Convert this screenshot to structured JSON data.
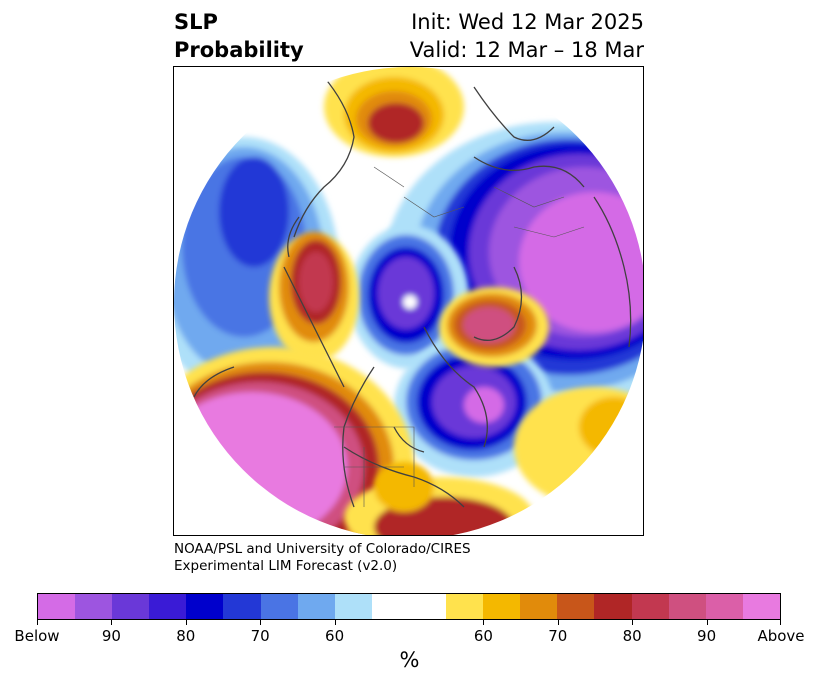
{
  "header": {
    "title_line1": "SLP",
    "title_line2": "Probability",
    "init_line": "Init: Wed 12 Mar 2025",
    "valid_line": "Valid: 12 Mar – 18 Mar"
  },
  "credit": {
    "line1": "NOAA/PSL and University of Colorado/CIRES",
    "line2": "Experimental LIM Forecast (v2.0)"
  },
  "colorbar": {
    "colors": [
      "#d46be6",
      "#9d55e0",
      "#6a38d8",
      "#3a1bd6",
      "#0000cc",
      "#2338d6",
      "#4a74e4",
      "#6fa9ef",
      "#aee0f9",
      "#ffffff",
      "#ffffff",
      "#ffe24d",
      "#f4b800",
      "#e18b0b",
      "#c8561a",
      "#b02626",
      "#c23850",
      "#cf5080",
      "#db5fa8",
      "#e87ae0"
    ],
    "tick_labels": [
      "Below",
      "90",
      "80",
      "70",
      "60",
      "60",
      "70",
      "80",
      "90",
      "Above"
    ],
    "unit_label": "%"
  },
  "map": {
    "anomaly_colors": {
      "above_strong": "#e87ae0",
      "above_high": "#b02626",
      "above_mid": "#e18b0b",
      "above_low": "#ffe24d",
      "below_low": "#aee0f9",
      "below_mid": "#4a74e4",
      "below_high": "#0000cc",
      "below_strong": "#9d55e0",
      "coastline": "#404040"
    }
  }
}
